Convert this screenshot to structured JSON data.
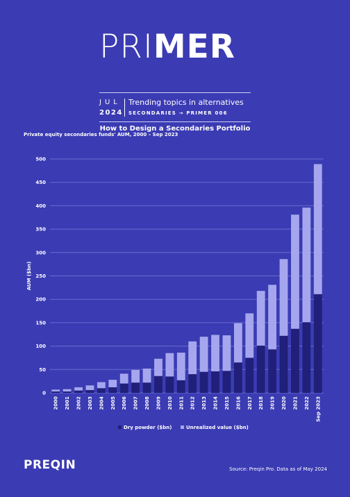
{
  "header": {
    "brand_light": "PRI",
    "brand_bold": "MER",
    "month": "JUL",
    "year": "2024",
    "topic": "Trending topics in alternatives",
    "series_line": "SECONDARIES → PRIMER 006",
    "subtitle": "How to Design a Secondaries Portfolio"
  },
  "colors": {
    "background": "#3b3bb3",
    "dry_powder": "#20207a",
    "unrealized": "#a5a6ee",
    "gridline": "#6b6cd0"
  },
  "footer": {
    "logo": "PREQIN",
    "source": "Source: Preqin Pro. Data as of May 2024"
  },
  "chart_data": {
    "type": "bar",
    "stacked": true,
    "title": "Private equity secondaries funds' AUM, 2000 – Sep 2023",
    "ylabel": "AUM ($bn)",
    "xlabel": "",
    "ylim": [
      0,
      500
    ],
    "yticks": [
      0,
      50,
      100,
      150,
      200,
      250,
      300,
      350,
      400,
      450,
      500
    ],
    "grid": true,
    "legend_position": "bottom",
    "categories": [
      "2000",
      "2001",
      "2002",
      "2003",
      "2004",
      "2005",
      "2006",
      "2007",
      "2008",
      "2009",
      "2010",
      "2011",
      "2012",
      "2013",
      "2014",
      "2015",
      "2016",
      "2017",
      "2018",
      "2019",
      "2020",
      "2021",
      "2022",
      "Sep 2023"
    ],
    "series": [
      {
        "name": "Dry powder ($bn)",
        "values": [
          3,
          3,
          5,
          6,
          10,
          12,
          20,
          22,
          22,
          36,
          35,
          27,
          40,
          45,
          46,
          47,
          65,
          75,
          101,
          93,
          122,
          137,
          151,
          211
        ]
      },
      {
        "name": "Unrealized value ($bn)",
        "values": [
          4,
          5,
          7,
          10,
          13,
          16,
          21,
          27,
          30,
          37,
          50,
          59,
          70,
          75,
          78,
          76,
          84,
          95,
          117,
          138,
          164,
          244,
          245,
          278
        ]
      }
    ]
  }
}
